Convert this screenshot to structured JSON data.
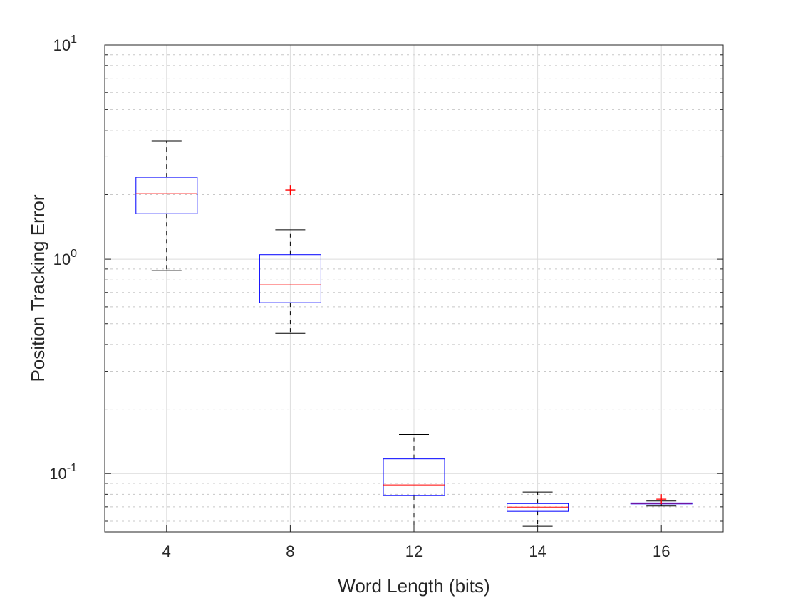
{
  "chart_data": {
    "type": "boxplot",
    "title": "",
    "xlabel": "Word Length (bits)",
    "ylabel": "Position Tracking Error",
    "yscale": "log",
    "ylim": [
      0.0535,
      10
    ],
    "grid": true,
    "categories": [
      "4",
      "8",
      "12",
      "14",
      "16"
    ],
    "y_tick_labels": [
      {
        "base": "10",
        "exp": "-1",
        "value": 0.1
      },
      {
        "base": "10",
        "exp": "0",
        "value": 1
      },
      {
        "base": "10",
        "exp": "1",
        "value": 10
      }
    ],
    "boxes": [
      {
        "category": "4",
        "lower_whisker": 0.885,
        "q1": 1.63,
        "median": 2.02,
        "q3": 2.41,
        "upper_whisker": 3.56,
        "outliers": []
      },
      {
        "category": "8",
        "lower_whisker": 0.451,
        "q1": 0.627,
        "median": 0.759,
        "q3": 1.05,
        "upper_whisker": 1.37,
        "outliers": [
          2.1
        ]
      },
      {
        "category": "12",
        "lower_whisker": 0.0535,
        "q1": 0.0789,
        "median": 0.0885,
        "q3": 0.117,
        "upper_whisker": 0.152,
        "outliers": []
      },
      {
        "category": "14",
        "lower_whisker": 0.0568,
        "q1": 0.0667,
        "median": 0.0698,
        "q3": 0.0725,
        "upper_whisker": 0.082,
        "outliers": []
      },
      {
        "category": "16",
        "lower_whisker": 0.0706,
        "q1": 0.0722,
        "median": 0.0727,
        "q3": 0.073,
        "upper_whisker": 0.0745,
        "outliers": [
          0.076
        ]
      }
    ],
    "colors": {
      "box": "#0000ff",
      "median": "#ff0000",
      "whisker": "#000000",
      "outlier": "#ff0000"
    }
  }
}
